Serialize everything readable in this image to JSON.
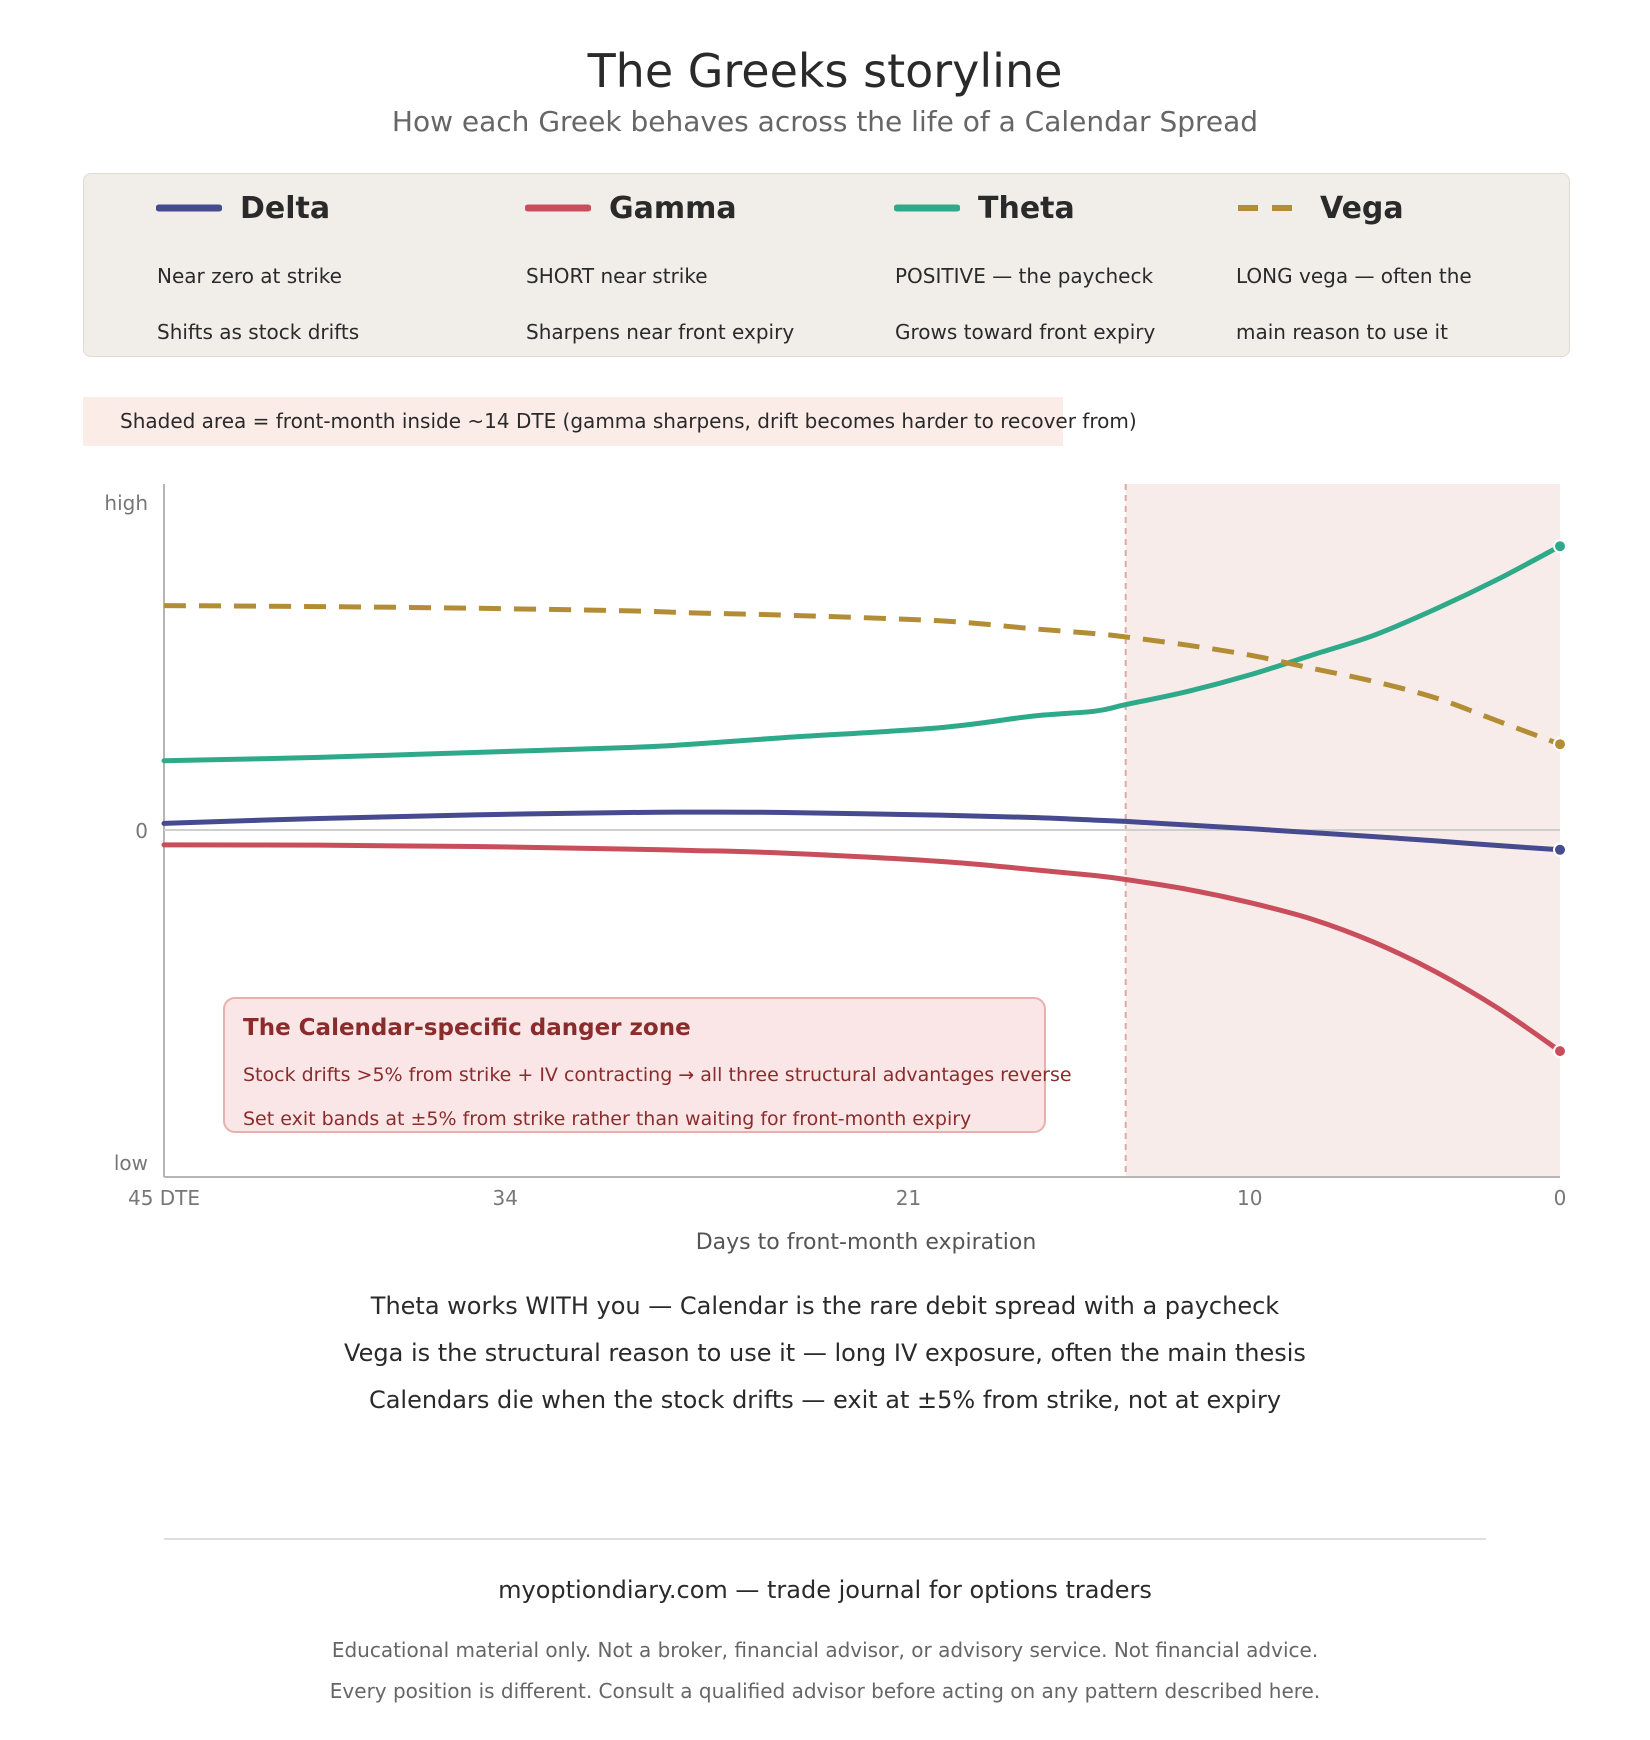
{
  "header": {
    "title": "The Greeks storyline",
    "subtitle": "How each Greek behaves across the life of a Calendar Spread"
  },
  "legend": [
    {
      "name": "Delta",
      "color": "#464a8f",
      "dashed": false,
      "line1": "Near zero at strike",
      "line2": "Shifts as stock drifts"
    },
    {
      "name": "Gamma",
      "color": "#c94e5c",
      "dashed": false,
      "line1": "SHORT near strike",
      "line2": "Sharpens near front expiry"
    },
    {
      "name": "Theta",
      "color": "#2ea98a",
      "dashed": false,
      "line1": "POSITIVE — the paycheck",
      "line2": "Grows toward front expiry"
    },
    {
      "name": "Vega",
      "color": "#b38d35",
      "dashed": true,
      "line1": "LONG vega — often the",
      "line2": "main reason to use it"
    }
  ],
  "note": "Shaded area = front-month inside ~14 DTE  (gamma sharpens, drift becomes harder to recover from)",
  "chart_data": {
    "type": "line",
    "xlabel": "Days to front-month expiration",
    "ylabel": "",
    "x_ticks": [
      {
        "value": 45,
        "label": "45 DTE"
      },
      {
        "value": 34,
        "label": "34"
      },
      {
        "value": 21,
        "label": "21"
      },
      {
        "value": 10,
        "label": "10"
      },
      {
        "value": 0,
        "label": "0"
      }
    ],
    "y_ticks": [
      {
        "value": 1.0,
        "label": "high"
      },
      {
        "value": 0,
        "label": "0"
      },
      {
        "value": -1.0,
        "label": "low"
      }
    ],
    "xlim": [
      45,
      0
    ],
    "ylim": [
      -1.05,
      1.05
    ],
    "shaded_region": {
      "x_from": 14,
      "x_to": 0,
      "color": "#f8ecea"
    },
    "zero_line": true,
    "x": [
      45,
      40,
      35,
      30,
      28,
      25,
      20,
      17,
      15,
      14,
      12,
      10,
      8,
      6,
      4,
      2,
      0
    ],
    "series": [
      {
        "name": "Delta",
        "color": "#464a8f",
        "dashed": false,
        "values": [
          0.02,
          0.035,
          0.046,
          0.053,
          0.054,
          0.053,
          0.045,
          0.038,
          0.03,
          0.026,
          0.015,
          0.004,
          -0.008,
          -0.02,
          -0.033,
          -0.047,
          -0.06
        ]
      },
      {
        "name": "Gamma",
        "color": "#c94e5c",
        "dashed": false,
        "values": [
          -0.045,
          -0.046,
          -0.05,
          -0.058,
          -0.062,
          -0.07,
          -0.095,
          -0.12,
          -0.138,
          -0.15,
          -0.18,
          -0.22,
          -0.27,
          -0.34,
          -0.43,
          -0.54,
          -0.67
        ]
      },
      {
        "name": "Theta",
        "color": "#2ea98a",
        "dashed": false,
        "values": [
          0.21,
          0.22,
          0.235,
          0.25,
          0.26,
          0.28,
          0.31,
          0.345,
          0.36,
          0.38,
          0.42,
          0.47,
          0.53,
          0.59,
          0.67,
          0.76,
          0.86
        ]
      },
      {
        "name": "Vega",
        "color": "#b38d35",
        "dashed": true,
        "values": [
          0.68,
          0.677,
          0.672,
          0.664,
          0.658,
          0.651,
          0.634,
          0.61,
          0.595,
          0.585,
          0.56,
          0.53,
          0.49,
          0.45,
          0.4,
          0.33,
          0.26
        ]
      }
    ]
  },
  "callout": {
    "title": "The Calendar-specific danger zone",
    "line1": "Stock drifts >5% from strike + IV contracting → all three structural advantages reverse",
    "line2": "Set exit bands at ±5% from strike rather than waiting for front-month expiry"
  },
  "takeaways": [
    "Theta works WITH you — Calendar is the rare debit spread with a paycheck",
    "Vega is the structural reason to use it — long IV exposure, often the main thesis",
    "Calendars die when the stock drifts — exit at ±5% from strike, not at expiry"
  ],
  "footer": {
    "site": "myoptiondiary.com — trade journal for options traders",
    "disclaimer1": "Educational material only. Not a broker, financial advisor, or advisory service. Not financial advice.",
    "disclaimer2": "Every position is different. Consult a qualified advisor before acting on any pattern described here."
  }
}
